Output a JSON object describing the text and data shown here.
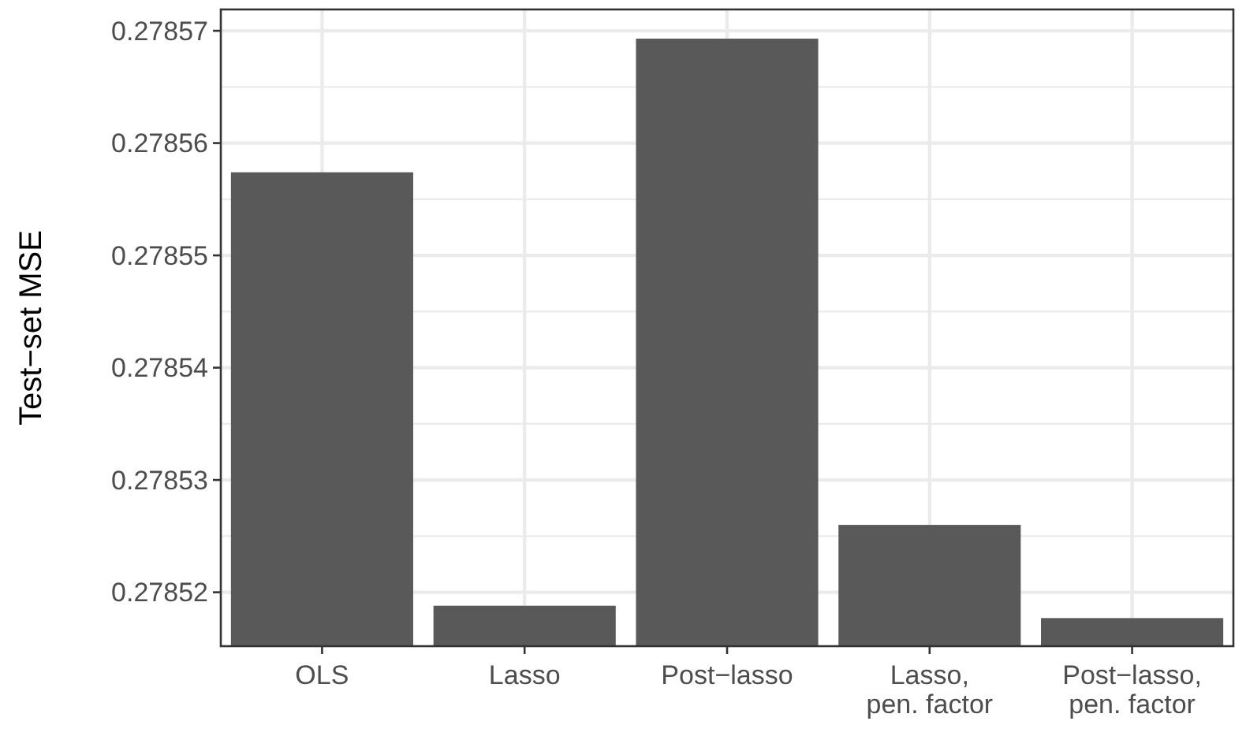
{
  "chart_data": {
    "type": "bar",
    "ylabel": "Test−set MSE",
    "categories": [
      "OLS",
      "Lasso",
      "Post−lasso",
      "Lasso,\npen. factor",
      "Post−lasso,\npen. factor"
    ],
    "values": [
      0.2785574,
      0.2785188,
      0.2785693,
      0.278526,
      0.2785177
    ],
    "color": "#595959",
    "ylim": [
      0.2785152,
      0.2785719
    ],
    "yticks": [
      0.27852,
      0.27853,
      0.27854,
      0.27855,
      0.27856,
      0.27857
    ],
    "grid": true
  }
}
